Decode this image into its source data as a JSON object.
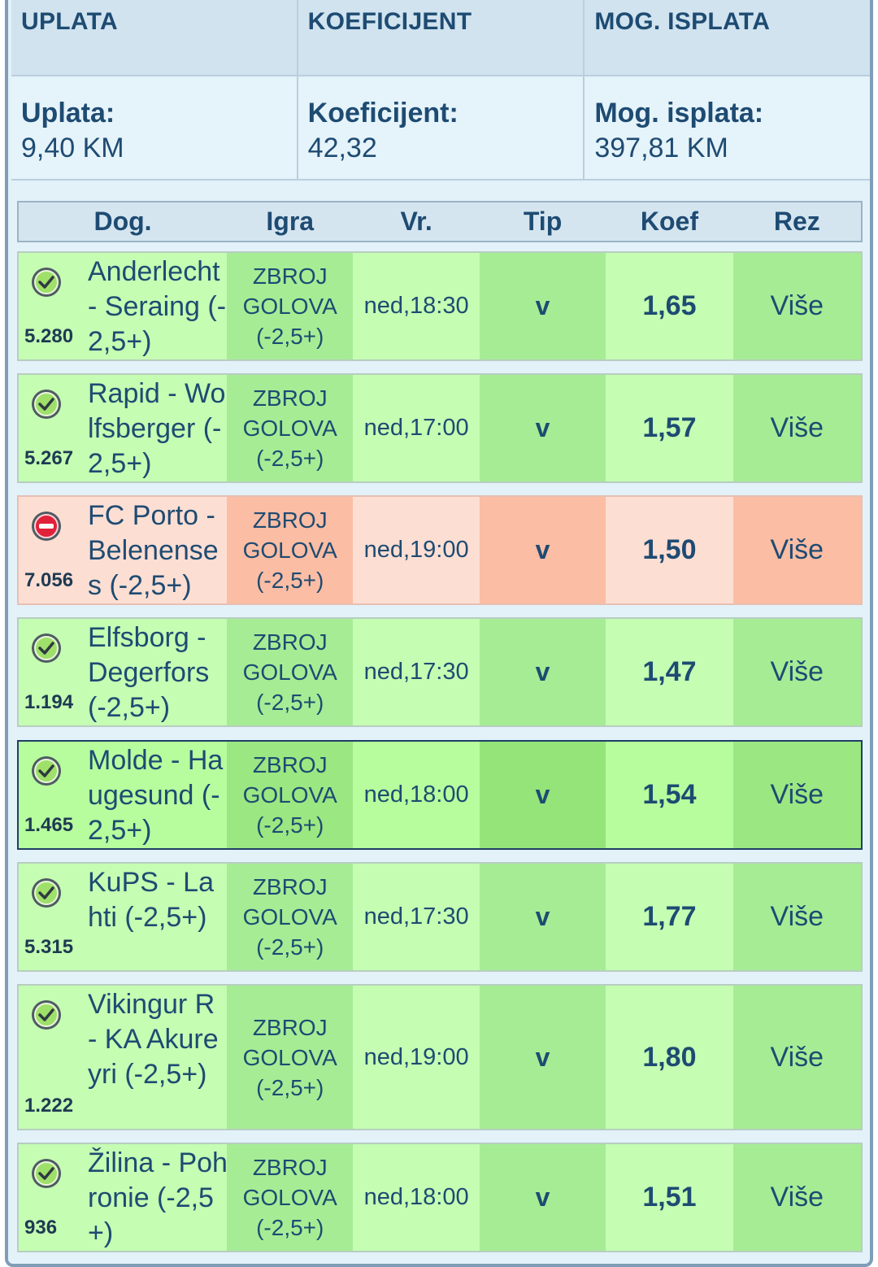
{
  "summary": {
    "headers": [
      "UPLATA",
      "KOEFICIJENT",
      "MOG. ISPLATA"
    ],
    "labels": [
      "Uplata:",
      "Koeficijent:",
      "Mog. isplata:"
    ],
    "values": [
      "9,40 KM",
      "42,32",
      "397,81 KM"
    ]
  },
  "table": {
    "columns": [
      "Dog.",
      "Igra",
      "Vr.",
      "Tip",
      "Koef",
      "Rez"
    ]
  },
  "rows": [
    {
      "status": "won",
      "event_id": "5.280",
      "match": "Anderlecht - Seraing (-2,5+)",
      "game_l1": "ZBROJ",
      "game_l2": "GOLOVA",
      "game_l3": "(-2,5+)",
      "time": "ned,18:30",
      "tip": "v",
      "koef": "1,65",
      "rez": "Više",
      "status_icon": "check-circle-icon"
    },
    {
      "status": "won",
      "event_id": "5.267",
      "match": "Rapid - Wolfsberger (-2,5+)",
      "game_l1": "ZBROJ",
      "game_l2": "GOLOVA",
      "game_l3": "(-2,5+)",
      "time": "ned,17:00",
      "tip": "v",
      "koef": "1,57",
      "rez": "Više",
      "status_icon": "check-circle-icon"
    },
    {
      "status": "lost",
      "event_id": "7.056",
      "match": "FC Porto - Belenenses (-2,5+)",
      "game_l1": "ZBROJ",
      "game_l2": "GOLOVA",
      "game_l3": "(-2,5+)",
      "time": "ned,19:00",
      "tip": "v",
      "koef": "1,50",
      "rez": "Više",
      "status_icon": "minus-circle-icon"
    },
    {
      "status": "won",
      "event_id": "1.194",
      "match": "Elfsborg - Degerfors (-2,5+)",
      "game_l1": "ZBROJ",
      "game_l2": "GOLOVA",
      "game_l3": "(-2,5+)",
      "time": "ned,17:30",
      "tip": "v",
      "koef": "1,47",
      "rez": "Više",
      "status_icon": "check-circle-icon"
    },
    {
      "status": "won",
      "event_id": "1.465",
      "match": "Molde - Haugesund (-2,5+)",
      "game_l1": "ZBROJ",
      "game_l2": "GOLOVA",
      "game_l3": "(-2,5+)",
      "time": "ned,18:00",
      "tip": "v",
      "koef": "1,54",
      "rez": "Više",
      "status_icon": "check-circle-icon"
    },
    {
      "status": "won",
      "event_id": "5.315",
      "match": "KuPS - Lahti (-2,5+)",
      "game_l1": "ZBROJ",
      "game_l2": "GOLOVA",
      "game_l3": "(-2,5+)",
      "time": "ned,17:30",
      "tip": "v",
      "koef": "1,77",
      "rez": "Više",
      "status_icon": "check-circle-icon"
    },
    {
      "status": "won",
      "event_id": "1.222",
      "match": "Vikingur R - KA Akureyri (-2,5+)",
      "game_l1": "ZBROJ",
      "game_l2": "GOLOVA",
      "game_l3": "(-2,5+)",
      "time": "ned,19:00",
      "tip": "v",
      "koef": "1,80",
      "rez": "Više",
      "status_icon": "check-circle-icon"
    },
    {
      "status": "won",
      "event_id": "936",
      "match": "Žilina - Pohronie (-2,5+)",
      "game_l1": "ZBROJ",
      "game_l2": "GOLOVA",
      "game_l3": "(-2,5+)",
      "time": "ned,18:00",
      "tip": "v",
      "koef": "1,51",
      "rez": "Više",
      "status_icon": "check-circle-icon"
    }
  ],
  "colors": {
    "header_text": "#1e4b72",
    "won_light": "#c5fdb3",
    "won_dark": "#a6ec95",
    "lost_light": "#fdded3",
    "lost_dark": "#fbbda4",
    "selected_border": "#1f3f66"
  }
}
